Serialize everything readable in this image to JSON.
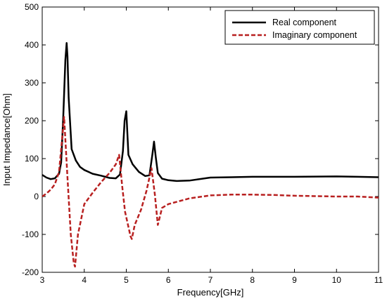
{
  "chart_data": {
    "type": "line",
    "title": "",
    "xlabel": "Frequency[GHz]",
    "ylabel": "Input Impedance[Ohm]",
    "xlim": [
      3,
      11
    ],
    "ylim": [
      -200,
      500
    ],
    "xticks": [
      3,
      4,
      5,
      6,
      7,
      8,
      9,
      10,
      11
    ],
    "yticks": [
      -200,
      -100,
      0,
      100,
      200,
      300,
      400,
      500
    ],
    "grid": false,
    "legend_position": "top-right",
    "series": [
      {
        "name": "Real component",
        "color": "#000000",
        "style": "solid",
        "x": [
          3.0,
          3.1,
          3.2,
          3.3,
          3.4,
          3.45,
          3.5,
          3.55,
          3.58,
          3.6,
          3.63,
          3.7,
          3.8,
          3.9,
          4.0,
          4.2,
          4.4,
          4.6,
          4.75,
          4.85,
          4.92,
          4.96,
          5.0,
          5.05,
          5.15,
          5.3,
          5.45,
          5.55,
          5.62,
          5.66,
          5.7,
          5.75,
          5.85,
          6.0,
          6.2,
          6.5,
          7.0,
          7.5,
          8.0,
          9.0,
          10.0,
          10.5,
          11.0
        ],
        "y": [
          57,
          50,
          46,
          48,
          60,
          90,
          210,
          360,
          405,
          370,
          260,
          125,
          95,
          78,
          70,
          60,
          55,
          49,
          48,
          58,
          120,
          200,
          225,
          110,
          85,
          65,
          54,
          56,
          110,
          145,
          105,
          62,
          47,
          43,
          41,
          42,
          50,
          51,
          52,
          52,
          53,
          52,
          51
        ]
      },
      {
        "name": "Imaginary component",
        "color": "#b82020",
        "style": "dashed",
        "x": [
          3.0,
          3.1,
          3.2,
          3.3,
          3.4,
          3.48,
          3.52,
          3.6,
          3.68,
          3.75,
          3.78,
          3.85,
          4.0,
          4.2,
          4.4,
          4.6,
          4.75,
          4.83,
          4.9,
          4.97,
          5.05,
          5.1,
          5.13,
          5.2,
          5.35,
          5.48,
          5.53,
          5.6,
          5.68,
          5.75,
          5.85,
          6.0,
          6.5,
          7.0,
          7.5,
          8.0,
          8.5,
          9.0,
          10.0,
          10.5,
          11.0
        ],
        "y": [
          0,
          8,
          18,
          32,
          65,
          160,
          210,
          50,
          -100,
          -175,
          -185,
          -100,
          -20,
          10,
          38,
          62,
          85,
          110,
          30,
          -40,
          -80,
          -105,
          -112,
          -75,
          -35,
          15,
          40,
          75,
          5,
          -75,
          -30,
          -20,
          -5,
          3,
          5,
          5,
          4,
          2,
          0,
          0,
          -3
        ]
      }
    ]
  }
}
